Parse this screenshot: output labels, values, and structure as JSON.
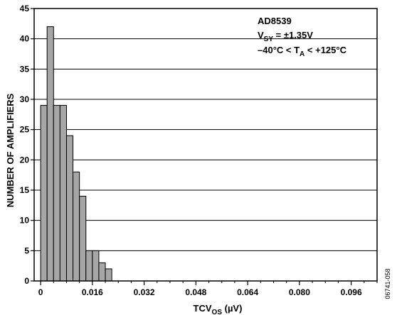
{
  "chart_data": {
    "type": "bar",
    "subtype": "histogram",
    "bin_width": 0.002,
    "bins": [
      {
        "x0": 0.0,
        "x1": 0.002,
        "value": 29
      },
      {
        "x0": 0.002,
        "x1": 0.004,
        "value": 42
      },
      {
        "x0": 0.004,
        "x1": 0.006,
        "value": 29
      },
      {
        "x0": 0.006,
        "x1": 0.008,
        "value": 29
      },
      {
        "x0": 0.008,
        "x1": 0.01,
        "value": 24
      },
      {
        "x0": 0.01,
        "x1": 0.012,
        "value": 18
      },
      {
        "x0": 0.012,
        "x1": 0.014,
        "value": 14
      },
      {
        "x0": 0.014,
        "x1": 0.016,
        "value": 5
      },
      {
        "x0": 0.016,
        "x1": 0.018,
        "value": 5
      },
      {
        "x0": 0.018,
        "x1": 0.02,
        "value": 3
      },
      {
        "x0": 0.02,
        "x1": 0.022,
        "value": 2
      }
    ],
    "xlim": [
      -0.002,
      0.104
    ],
    "ylim": [
      0,
      45
    ],
    "xticks": [
      0,
      0.016,
      0.032,
      0.048,
      0.064,
      0.08,
      0.096
    ],
    "xtick_labels": [
      "0",
      "0.016",
      "0.032",
      "0.048",
      "0.064",
      "0.080",
      "0.096"
    ],
    "yticks": [
      0,
      5,
      10,
      15,
      20,
      25,
      30,
      35,
      40,
      45
    ],
    "xlabel": {
      "base": "TCV",
      "sub": "OS",
      "suffix": " (µV)"
    },
    "ylabel": "NUMBER OF AMPLIFIERS",
    "grid": {
      "horizontal": true,
      "vertical": false
    },
    "annotations": {
      "line1": "AD8539",
      "line2": {
        "base": "V",
        "sub": "SY",
        "suffix": " = ±1.35V"
      },
      "line3": {
        "prefix": "–40°C < T",
        "sub": "A",
        "suffix": " < +125°C"
      }
    },
    "figure_id": "06741-058",
    "colors": {
      "bar_fill": "#a6a6a6",
      "bar_stroke": "#000000",
      "grid": "#000000"
    }
  }
}
